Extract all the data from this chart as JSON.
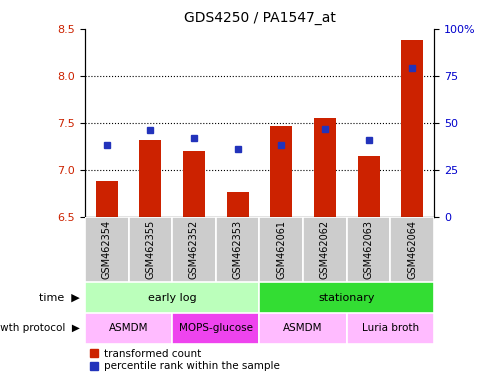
{
  "title": "GDS4250 / PA1547_at",
  "samples": [
    "GSM462354",
    "GSM462355",
    "GSM462352",
    "GSM462353",
    "GSM462061",
    "GSM462062",
    "GSM462063",
    "GSM462064"
  ],
  "transformed_count": [
    6.88,
    7.32,
    7.2,
    6.76,
    7.47,
    7.55,
    7.15,
    8.38
  ],
  "percentile_rank": [
    38,
    46,
    42,
    36,
    38,
    47,
    41,
    79
  ],
  "ylim_left": [
    6.5,
    8.5
  ],
  "ylim_right": [
    0,
    100
  ],
  "yticks_left": [
    6.5,
    7.0,
    7.5,
    8.0,
    8.5
  ],
  "yticks_right": [
    0,
    25,
    50,
    75,
    100
  ],
  "bar_color": "#cc2200",
  "dot_color": "#2233bb",
  "bar_bottom": 6.5,
  "time_groups": [
    {
      "label": "early log",
      "start": 0,
      "end": 4,
      "color": "#bbffbb"
    },
    {
      "label": "stationary",
      "start": 4,
      "end": 8,
      "color": "#33dd33"
    }
  ],
  "protocol_groups": [
    {
      "label": "ASMDM",
      "start": 0,
      "end": 2,
      "color": "#ffbbff"
    },
    {
      "label": "MOPS-glucose",
      "start": 2,
      "end": 4,
      "color": "#ee44ee"
    },
    {
      "label": "ASMDM",
      "start": 4,
      "end": 6,
      "color": "#ffbbff"
    },
    {
      "label": "Luria broth",
      "start": 6,
      "end": 8,
      "color": "#ffbbff"
    }
  ],
  "bg_color": "#ffffff",
  "plot_bg_color": "#ffffff",
  "label_color_left": "#cc2200",
  "label_color_right": "#0000cc",
  "sample_bg_color": "#cccccc",
  "sample_divider_color": "#ffffff"
}
